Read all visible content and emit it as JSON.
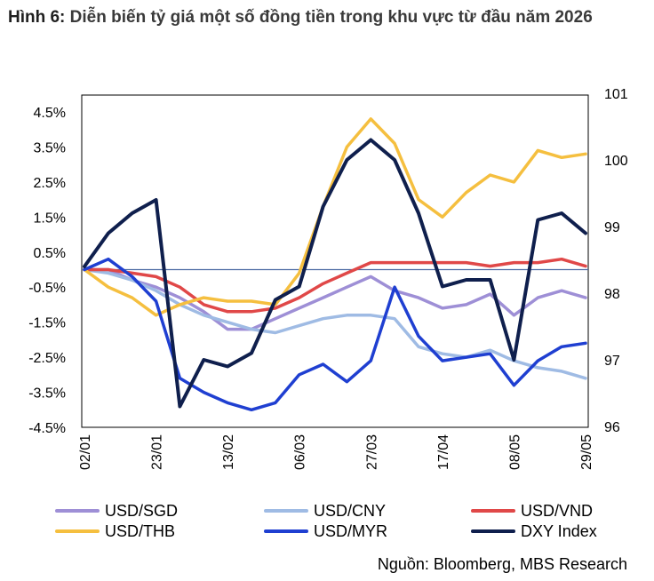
{
  "figure": {
    "prefix": "Hình 6:",
    "title": "Diễn biến tỷ giá một số đồng tiền trong khu vực từ đầu năm 2026",
    "source": "Nguồn: Bloomberg, MBS Research"
  },
  "chart_data": {
    "type": "line",
    "title": "Diễn biến tỷ giá một số đồng tiền trong khu vực từ đầu năm 2026",
    "x_tick_labels": [
      "02/01",
      "23/01",
      "13/02",
      "06/03",
      "27/03",
      "17/04",
      "08/05",
      "29/05"
    ],
    "x": [
      "02/01",
      "09/01",
      "16/01",
      "23/01",
      "30/01",
      "06/02",
      "13/02",
      "20/02",
      "27/02",
      "06/03",
      "13/03",
      "20/03",
      "27/03",
      "03/04",
      "10/04",
      "17/04",
      "24/04",
      "01/05",
      "08/05",
      "15/05",
      "22/05",
      "29/05"
    ],
    "y_left": {
      "ticks": [
        "4.5%",
        "3.5%",
        "2.5%",
        "1.5%",
        "0.5%",
        "-0.5%",
        "-1.5%",
        "-2.5%",
        "-3.5%",
        "-4.5%"
      ],
      "range": [
        -4.5,
        4.5
      ]
    },
    "y_right": {
      "ticks": [
        "101",
        "100",
        "99",
        "98",
        "97",
        "96"
      ],
      "range": [
        96,
        101
      ]
    },
    "grid": false,
    "legend_position": "bottom",
    "series": [
      {
        "name": "USD/SGD",
        "axis": "left",
        "color": "#9e8fd6",
        "values": [
          0.0,
          0.0,
          -0.3,
          -0.5,
          -0.8,
          -1.2,
          -1.7,
          -1.7,
          -1.4,
          -1.1,
          -0.8,
          -0.5,
          -0.2,
          -0.6,
          -0.8,
          -1.1,
          -1.0,
          -0.7,
          -1.3,
          -0.8,
          -0.6,
          -0.8
        ]
      },
      {
        "name": "USD/CNY",
        "axis": "left",
        "color": "#9fbbe4",
        "values": [
          0.0,
          -0.1,
          -0.3,
          -0.6,
          -1.0,
          -1.3,
          -1.5,
          -1.7,
          -1.8,
          -1.6,
          -1.4,
          -1.3,
          -1.3,
          -1.4,
          -2.2,
          -2.4,
          -2.5,
          -2.3,
          -2.6,
          -2.8,
          -2.9,
          -3.1
        ]
      },
      {
        "name": "USD/VND",
        "axis": "left",
        "color": "#e04848",
        "values": [
          0.0,
          0.0,
          -0.1,
          -0.2,
          -0.5,
          -1.0,
          -1.2,
          -1.2,
          -1.1,
          -0.8,
          -0.4,
          -0.1,
          0.2,
          0.2,
          0.2,
          0.2,
          0.2,
          0.1,
          0.2,
          0.2,
          0.3,
          0.1
        ]
      },
      {
        "name": "USD/THB",
        "axis": "left",
        "color": "#f5bf3f",
        "values": [
          0.0,
          -0.5,
          -0.8,
          -1.3,
          -1.0,
          -0.8,
          -0.9,
          -0.9,
          -1.0,
          -0.1,
          1.8,
          3.5,
          4.3,
          3.6,
          2.0,
          1.5,
          2.2,
          2.7,
          2.5,
          3.4,
          3.2,
          3.3
        ]
      },
      {
        "name": "USD/MYR",
        "axis": "left",
        "color": "#1f3fd1",
        "values": [
          0.0,
          0.3,
          -0.2,
          -0.9,
          -3.1,
          -3.5,
          -3.8,
          -4.0,
          -3.8,
          -3.0,
          -2.7,
          -3.2,
          -2.6,
          -0.5,
          -1.9,
          -2.6,
          -2.5,
          -2.4,
          -3.3,
          -2.6,
          -2.2,
          -2.1
        ]
      },
      {
        "name": "DXY Index",
        "axis": "right",
        "color": "#0f1f4d",
        "values": [
          98.4,
          98.9,
          99.2,
          99.4,
          96.3,
          97.0,
          96.9,
          97.1,
          97.9,
          98.1,
          99.3,
          100.0,
          100.3,
          100.0,
          99.2,
          98.1,
          98.2,
          98.2,
          97.0,
          99.1,
          99.2,
          98.9
        ]
      }
    ]
  },
  "legend": {
    "items": [
      {
        "label": "USD/SGD",
        "color": "#9e8fd6"
      },
      {
        "label": "USD/CNY",
        "color": "#9fbbe4"
      },
      {
        "label": "USD/VND",
        "color": "#e04848"
      },
      {
        "label": "USD/THB",
        "color": "#f5bf3f"
      },
      {
        "label": "USD/MYR",
        "color": "#1f3fd1"
      },
      {
        "label": "DXY Index",
        "color": "#0f1f4d"
      }
    ]
  }
}
